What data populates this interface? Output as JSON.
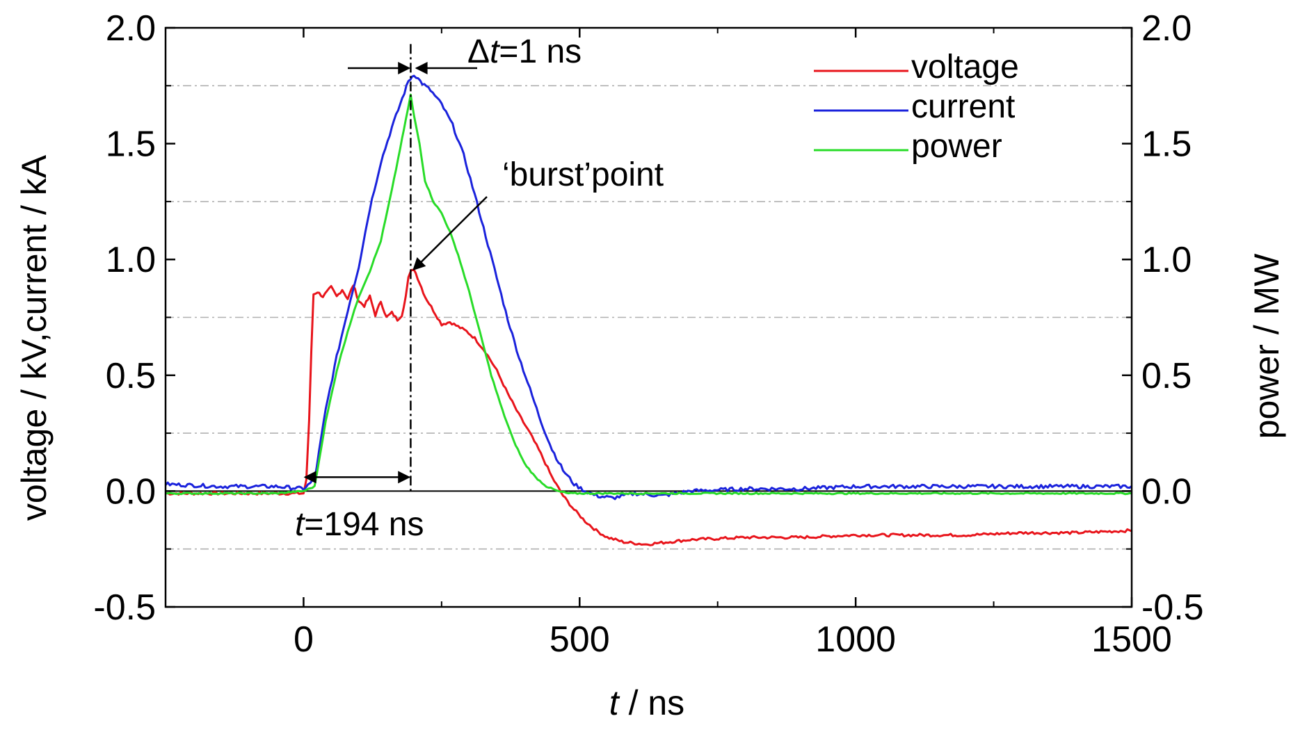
{
  "chart_data": {
    "type": "line",
    "xlabel": {
      "italic": "t",
      "rest": " / ns"
    },
    "ylabel_left": "voltage / kV,current / kA",
    "ylabel_right": "power / MW",
    "xlim": [
      -250,
      1500
    ],
    "ylim": [
      -0.5,
      2.0
    ],
    "y2lim": [
      -0.5,
      2.0
    ],
    "x_ticks": [
      "0",
      "500",
      "1000",
      "1500"
    ],
    "x_tick_values": [
      0,
      500,
      1000,
      1500
    ],
    "y_ticks": [
      "-0.5",
      "0.0",
      "0.5",
      "1.0",
      "1.5",
      "2.0"
    ],
    "y_tick_values": [
      -0.5,
      0.0,
      0.5,
      1.0,
      1.5,
      2.0
    ],
    "y2_ticks": [
      "-0.5",
      "0.0",
      "0.5",
      "1.0",
      "1.5",
      "2.0"
    ],
    "y2_tick_values": [
      -0.5,
      0.0,
      0.5,
      1.0,
      1.5,
      2.0
    ],
    "grid": "dash-dot horizontal",
    "grid_values": [
      -0.25,
      0.25,
      0.75,
      1.25,
      1.75
    ],
    "zero_line": 0.0,
    "legend_position": "top-right",
    "series": [
      {
        "name": "voltage",
        "color": "#e8141b",
        "axis": "left",
        "x": [
          -250,
          -100,
          0,
          5,
          10,
          14,
          18,
          25,
          35,
          50,
          60,
          70,
          80,
          90,
          100,
          110,
          120,
          130,
          140,
          150,
          160,
          170,
          178,
          185,
          190,
          195,
          200,
          210,
          220,
          235,
          250,
          265,
          280,
          295,
          310,
          330,
          350,
          370,
          390,
          410,
          430,
          450,
          470,
          490,
          510,
          530,
          550,
          580,
          620,
          660,
          700,
          800,
          900,
          1000,
          1100,
          1200,
          1300,
          1400,
          1500
        ],
        "y": [
          -0.01,
          -0.01,
          -0.01,
          0.05,
          0.3,
          0.6,
          0.85,
          0.86,
          0.84,
          0.88,
          0.84,
          0.87,
          0.83,
          0.89,
          0.82,
          0.8,
          0.84,
          0.76,
          0.82,
          0.75,
          0.77,
          0.74,
          0.76,
          0.84,
          0.92,
          0.95,
          0.96,
          0.9,
          0.84,
          0.78,
          0.72,
          0.73,
          0.71,
          0.69,
          0.66,
          0.6,
          0.52,
          0.42,
          0.33,
          0.25,
          0.16,
          0.06,
          -0.02,
          -0.08,
          -0.13,
          -0.17,
          -0.2,
          -0.22,
          -0.23,
          -0.22,
          -0.21,
          -0.2,
          -0.2,
          -0.19,
          -0.19,
          -0.19,
          -0.18,
          -0.18,
          -0.17
        ]
      },
      {
        "name": "current",
        "color": "#1a22dc",
        "axis": "left",
        "x": [
          -250,
          -150,
          -50,
          0,
          20,
          40,
          60,
          80,
          100,
          120,
          140,
          160,
          175,
          190,
          200,
          215,
          230,
          250,
          270,
          290,
          310,
          330,
          350,
          370,
          390,
          410,
          430,
          450,
          470,
          490,
          510,
          530,
          560,
          600,
          650,
          700,
          800,
          900,
          1000,
          1100,
          1200,
          1300,
          1400,
          1500
        ],
        "y": [
          0.03,
          0.02,
          0.02,
          0.01,
          0.05,
          0.35,
          0.58,
          0.78,
          0.97,
          1.22,
          1.42,
          1.57,
          1.67,
          1.77,
          1.8,
          1.76,
          1.73,
          1.67,
          1.58,
          1.45,
          1.28,
          1.1,
          0.92,
          0.74,
          0.58,
          0.44,
          0.3,
          0.18,
          0.09,
          0.03,
          0.0,
          -0.02,
          -0.03,
          -0.01,
          -0.02,
          0.0,
          0.01,
          0.01,
          0.02,
          0.02,
          0.02,
          0.02,
          0.02,
          0.02
        ]
      },
      {
        "name": "power",
        "color": "#28dc28",
        "axis": "right",
        "x": [
          -250,
          -50,
          0,
          20,
          40,
          60,
          80,
          100,
          120,
          140,
          160,
          175,
          185,
          194,
          200,
          210,
          220,
          235,
          250,
          265,
          280,
          300,
          320,
          340,
          360,
          380,
          400,
          420,
          440,
          460,
          480,
          500,
          550,
          600,
          800,
          1000,
          1200,
          1500
        ],
        "y": [
          -0.01,
          -0.01,
          0.0,
          0.02,
          0.3,
          0.52,
          0.69,
          0.84,
          0.95,
          1.08,
          1.3,
          1.48,
          1.6,
          1.71,
          1.62,
          1.5,
          1.34,
          1.25,
          1.2,
          1.12,
          1.02,
          0.86,
          0.68,
          0.5,
          0.35,
          0.22,
          0.12,
          0.06,
          0.02,
          0.0,
          -0.01,
          -0.01,
          -0.01,
          -0.01,
          -0.01,
          -0.01,
          -0.01,
          -0.01
        ]
      }
    ],
    "annotations": {
      "delta_t": {
        "symbol": "Δ",
        "italic": "t",
        "rest": "=1 ns"
      },
      "t194": {
        "italic": "t",
        "rest": "=194 ns"
      },
      "burst": "‘burst’point",
      "markers": {
        "t_start": 0,
        "t_peak": 194,
        "burst_x": 194,
        "burst_y": 0.95
      }
    }
  }
}
